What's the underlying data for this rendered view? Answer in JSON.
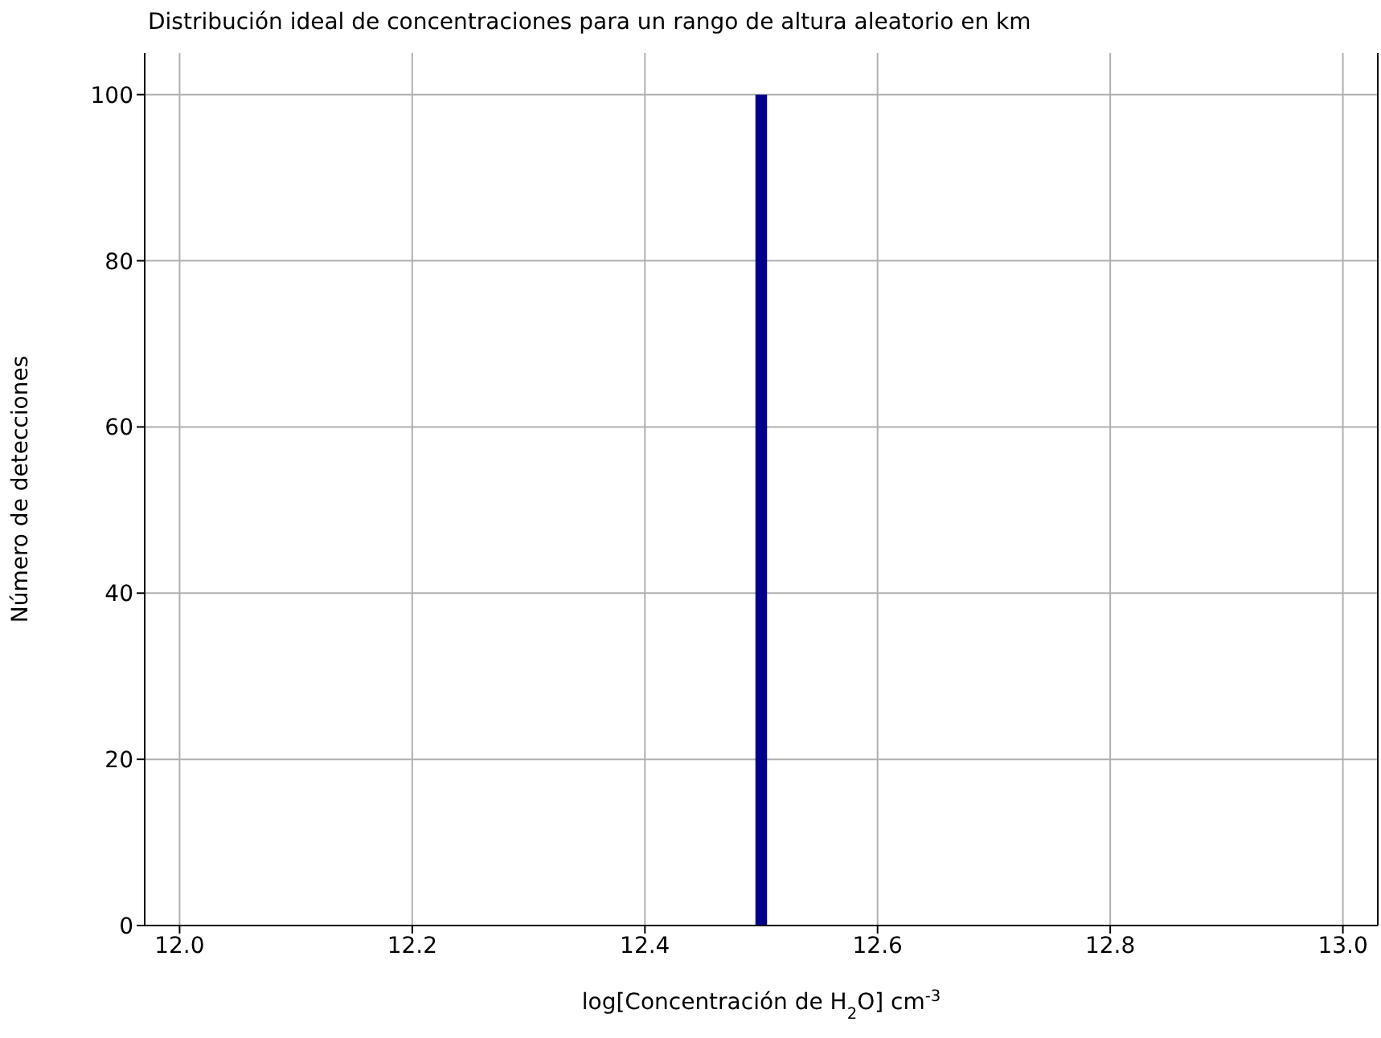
{
  "chart_data": {
    "type": "histogram",
    "title": "Distribución ideal de concentraciones para un rango de altura aleatorio en km",
    "xlabel": "log[Concentración de H$_{2}$O] cm$^{-3}$",
    "ylabel": "Número de detecciones",
    "bins": [
      12.495,
      12.505
    ],
    "values": [
      100
    ],
    "color": "#00008b",
    "xlim": [
      11.97,
      13.03
    ],
    "xticks": [
      {
        "value": 12,
        "label": "12.0"
      },
      {
        "value": 12.2,
        "label": "12.2"
      },
      {
        "value": 12.4,
        "label": "12.4"
      },
      {
        "value": 12.6,
        "label": "12.6"
      },
      {
        "value": 12.8,
        "label": "12.8"
      },
      {
        "value": 13,
        "label": "13.0"
      }
    ],
    "ylim": [
      0,
      105
    ],
    "yticks": [
      0,
      20,
      40,
      60,
      80,
      100
    ],
    "grid": true
  }
}
